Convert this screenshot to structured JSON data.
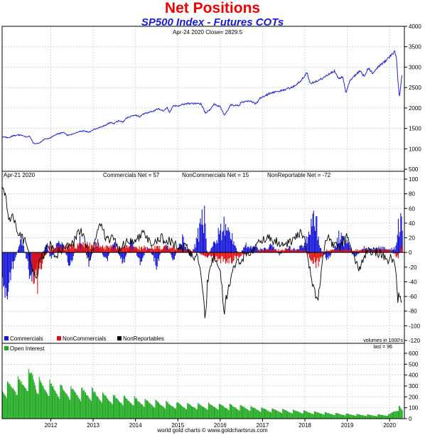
{
  "header": {
    "title": "Net Positions",
    "subtitle": "SP500 Index - Futures COTs"
  },
  "footer": {
    "credit": "world gold charts © www.goldchartsrus.com"
  },
  "colors": {
    "price": "#2222dd",
    "commercials": "#1616d8",
    "noncommercials": "#e01010",
    "nonreportables": "#000000",
    "open_interest": "#22aa22",
    "grid": "#c8d8e8"
  },
  "chart_data": [
    {
      "type": "line",
      "title": "SP500 Index",
      "info": "Apr-24  2020   Close= 2829.5",
      "series": [],
      "x_range": [
        2010.85,
        2020.35
      ],
      "ylim": [
        450,
        4000
      ],
      "y_ticks": [
        500,
        1000,
        1500,
        2000,
        2500,
        3000,
        3500,
        4000
      ],
      "points": [
        [
          2010.85,
          1300
        ],
        [
          2011.0,
          1270
        ],
        [
          2011.1,
          1320
        ],
        [
          2011.25,
          1340
        ],
        [
          2011.33,
          1330
        ],
        [
          2011.42,
          1290
        ],
        [
          2011.5,
          1310
        ],
        [
          2011.58,
          1150
        ],
        [
          2011.67,
          1120
        ],
        [
          2011.75,
          1160
        ],
        [
          2011.85,
          1240
        ],
        [
          2011.95,
          1250
        ],
        [
          2012.0,
          1280
        ],
        [
          2012.15,
          1360
        ],
        [
          2012.3,
          1400
        ],
        [
          2012.4,
          1330
        ],
        [
          2012.5,
          1360
        ],
        [
          2012.65,
          1420
        ],
        [
          2012.8,
          1440
        ],
        [
          2012.9,
          1400
        ],
        [
          2013.0,
          1470
        ],
        [
          2013.25,
          1560
        ],
        [
          2013.4,
          1640
        ],
        [
          2013.5,
          1620
        ],
        [
          2013.6,
          1690
        ],
        [
          2013.7,
          1660
        ],
        [
          2013.8,
          1760
        ],
        [
          2014.0,
          1830
        ],
        [
          2014.1,
          1780
        ],
        [
          2014.2,
          1860
        ],
        [
          2014.4,
          1920
        ],
        [
          2014.55,
          1980
        ],
        [
          2014.65,
          1930
        ],
        [
          2014.75,
          2010
        ],
        [
          2014.8,
          1880
        ],
        [
          2014.9,
          2060
        ],
        [
          2015.0,
          2050
        ],
        [
          2015.2,
          2110
        ],
        [
          2015.4,
          2110
        ],
        [
          2015.55,
          2100
        ],
        [
          2015.65,
          1870
        ],
        [
          2015.75,
          1950
        ],
        [
          2015.85,
          2090
        ],
        [
          2016.0,
          2030
        ],
        [
          2016.1,
          1830
        ],
        [
          2016.25,
          2070
        ],
        [
          2016.45,
          2060
        ],
        [
          2016.5,
          2150
        ],
        [
          2016.7,
          2170
        ],
        [
          2016.85,
          2100
        ],
        [
          2016.95,
          2250
        ],
        [
          2017.0,
          2270
        ],
        [
          2017.2,
          2370
        ],
        [
          2017.5,
          2440
        ],
        [
          2017.7,
          2510
        ],
        [
          2017.9,
          2660
        ],
        [
          2018.05,
          2870
        ],
        [
          2018.12,
          2600
        ],
        [
          2018.3,
          2660
        ],
        [
          2018.5,
          2780
        ],
        [
          2018.7,
          2910
        ],
        [
          2018.8,
          2720
        ],
        [
          2018.9,
          2760
        ],
        [
          2018.97,
          2350
        ],
        [
          2019.05,
          2650
        ],
        [
          2019.3,
          2920
        ],
        [
          2019.4,
          2770
        ],
        [
          2019.5,
          2980
        ],
        [
          2019.6,
          2850
        ],
        [
          2019.7,
          2980
        ],
        [
          2019.85,
          3100
        ],
        [
          2020.0,
          3250
        ],
        [
          2020.12,
          3380
        ],
        [
          2020.16,
          3240
        ],
        [
          2020.2,
          2650
        ],
        [
          2020.23,
          2240
        ],
        [
          2020.27,
          2600
        ],
        [
          2020.3,
          2830
        ]
      ]
    },
    {
      "type": "bar",
      "title": "",
      "date_label": "Apr-21  2020",
      "legend_entries": [
        "Commercials Net = 57",
        "NonCommercials Net = 15",
        "NonReportable Net = -72"
      ],
      "series": [
        {
          "name": "Commercials",
          "kind": "bar"
        },
        {
          "name": "NonCommercials",
          "kind": "bar"
        },
        {
          "name": "NonReportables",
          "kind": "line"
        }
      ],
      "ylim": [
        -120,
        100
      ],
      "y_ticks": [
        100,
        80,
        60,
        40,
        20,
        0,
        -20,
        -40,
        -60,
        -80,
        -100,
        -120
      ],
      "commercials_envelope": [
        [
          2010.85,
          -45
        ],
        [
          2010.95,
          -75
        ],
        [
          2011.1,
          -30
        ],
        [
          2011.3,
          30
        ],
        [
          2011.45,
          -20
        ],
        [
          2011.55,
          -60
        ],
        [
          2011.7,
          -25
        ],
        [
          2011.9,
          20
        ],
        [
          2012.0,
          -15
        ],
        [
          2012.2,
          30
        ],
        [
          2012.45,
          -25
        ],
        [
          2012.7,
          30
        ],
        [
          2012.9,
          -20
        ],
        [
          2013.1,
          25
        ],
        [
          2013.3,
          -20
        ],
        [
          2013.5,
          20
        ],
        [
          2013.7,
          -25
        ],
        [
          2013.9,
          25
        ],
        [
          2014.1,
          -20
        ],
        [
          2014.3,
          10
        ],
        [
          2014.5,
          -25
        ],
        [
          2014.7,
          20
        ],
        [
          2014.9,
          -15
        ],
        [
          2015.1,
          30
        ],
        [
          2015.3,
          -10
        ],
        [
          2015.5,
          40
        ],
        [
          2015.62,
          75
        ],
        [
          2015.7,
          -10
        ],
        [
          2015.9,
          30
        ],
        [
          2016.1,
          50
        ],
        [
          2016.2,
          80
        ],
        [
          2016.3,
          20
        ],
        [
          2016.45,
          -5
        ],
        [
          2016.6,
          15
        ],
        [
          2016.8,
          10
        ],
        [
          2017.0,
          5
        ],
        [
          2017.2,
          15
        ],
        [
          2017.4,
          -5
        ],
        [
          2017.6,
          10
        ],
        [
          2017.8,
          5
        ],
        [
          2018.0,
          15
        ],
        [
          2018.15,
          60
        ],
        [
          2018.25,
          70
        ],
        [
          2018.35,
          10
        ],
        [
          2018.55,
          -15
        ],
        [
          2018.7,
          10
        ],
        [
          2018.8,
          30
        ],
        [
          2019.0,
          20
        ],
        [
          2019.2,
          -10
        ],
        [
          2019.4,
          10
        ],
        [
          2019.6,
          5
        ],
        [
          2019.8,
          10
        ],
        [
          2020.0,
          5
        ],
        [
          2020.15,
          10
        ],
        [
          2020.2,
          55
        ],
        [
          2020.25,
          65
        ],
        [
          2020.3,
          57
        ]
      ],
      "noncommercials_envelope": [
        [
          2011.55,
          -20
        ],
        [
          2011.6,
          -55
        ],
        [
          2011.68,
          -60
        ],
        [
          2011.75,
          -30
        ],
        [
          2011.85,
          -10
        ],
        [
          2012.0,
          10
        ],
        [
          2012.3,
          10
        ],
        [
          2012.6,
          15
        ],
        [
          2013.0,
          15
        ],
        [
          2013.5,
          10
        ],
        [
          2014.0,
          10
        ],
        [
          2014.4,
          10
        ],
        [
          2014.8,
          10
        ],
        [
          2015.3,
          5
        ],
        [
          2015.6,
          -5
        ],
        [
          2016.2,
          -20
        ],
        [
          2016.5,
          -5
        ],
        [
          2017.0,
          5
        ],
        [
          2017.5,
          5
        ],
        [
          2018.0,
          5
        ],
        [
          2018.2,
          -20
        ],
        [
          2018.3,
          -25
        ],
        [
          2018.5,
          5
        ],
        [
          2019.0,
          5
        ],
        [
          2019.5,
          5
        ],
        [
          2020.0,
          5
        ],
        [
          2020.2,
          -10
        ],
        [
          2020.3,
          15
        ]
      ],
      "nonreportables": [
        [
          2010.85,
          90
        ],
        [
          2010.95,
          70
        ],
        [
          2011.0,
          40
        ],
        [
          2011.1,
          50
        ],
        [
          2011.2,
          30
        ],
        [
          2011.3,
          20
        ],
        [
          2011.45,
          10
        ],
        [
          2011.55,
          -20
        ],
        [
          2011.65,
          -40
        ],
        [
          2011.75,
          -10
        ],
        [
          2011.9,
          5
        ],
        [
          2012.0,
          10
        ],
        [
          2012.1,
          -5
        ],
        [
          2012.3,
          5
        ],
        [
          2012.5,
          10
        ],
        [
          2012.7,
          30
        ],
        [
          2012.8,
          20
        ],
        [
          2012.9,
          -10
        ],
        [
          2013.0,
          5
        ],
        [
          2013.1,
          30
        ],
        [
          2013.2,
          40
        ],
        [
          2013.3,
          15
        ],
        [
          2013.5,
          20
        ],
        [
          2013.6,
          5
        ],
        [
          2013.8,
          15
        ],
        [
          2014.0,
          20
        ],
        [
          2014.2,
          25
        ],
        [
          2014.4,
          10
        ],
        [
          2014.6,
          20
        ],
        [
          2014.8,
          15
        ],
        [
          2015.0,
          10
        ],
        [
          2015.2,
          5
        ],
        [
          2015.4,
          -5
        ],
        [
          2015.5,
          -10
        ],
        [
          2015.6,
          -60
        ],
        [
          2015.65,
          -95
        ],
        [
          2015.7,
          -40
        ],
        [
          2015.8,
          -10
        ],
        [
          2015.9,
          -5
        ],
        [
          2016.0,
          -30
        ],
        [
          2016.1,
          -80
        ],
        [
          2016.15,
          -60
        ],
        [
          2016.3,
          -20
        ],
        [
          2016.5,
          -10
        ],
        [
          2016.7,
          0
        ],
        [
          2016.9,
          10
        ],
        [
          2017.1,
          20
        ],
        [
          2017.3,
          15
        ],
        [
          2017.5,
          10
        ],
        [
          2017.7,
          15
        ],
        [
          2017.9,
          25
        ],
        [
          2018.0,
          15
        ],
        [
          2018.1,
          -20
        ],
        [
          2018.2,
          -50
        ],
        [
          2018.3,
          -70
        ],
        [
          2018.4,
          -20
        ],
        [
          2018.5,
          20
        ],
        [
          2018.6,
          15
        ],
        [
          2018.7,
          10
        ],
        [
          2018.8,
          5
        ],
        [
          2018.9,
          15
        ],
        [
          2019.0,
          20
        ],
        [
          2019.1,
          0
        ],
        [
          2019.2,
          -15
        ],
        [
          2019.3,
          -20
        ],
        [
          2019.4,
          -5
        ],
        [
          2019.5,
          5
        ],
        [
          2019.7,
          0
        ],
        [
          2019.9,
          -5
        ],
        [
          2020.0,
          -10
        ],
        [
          2020.1,
          -5
        ],
        [
          2020.15,
          -30
        ],
        [
          2020.2,
          -75
        ],
        [
          2020.22,
          -45
        ],
        [
          2020.26,
          -70
        ],
        [
          2020.3,
          -72
        ]
      ],
      "legend": [
        "Commercials",
        "NonCommercials",
        "NonReportables"
      ],
      "volume_note": "volumes in 1000's"
    },
    {
      "type": "bar",
      "title": "Open Interest",
      "note": "last = 96",
      "ylim": [
        0,
        600
      ],
      "y_ticks": [
        600,
        500,
        400,
        300,
        200,
        100,
        0
      ],
      "x_ticks": [
        "2012",
        "2013",
        "2014",
        "2015",
        "2016",
        "2017",
        "2018",
        "2019",
        "2020"
      ],
      "x_tick_values": [
        2012,
        2013,
        2014,
        2015,
        2016,
        2017,
        2018,
        2019,
        2020
      ],
      "envelope": [
        [
          2010.85,
          340
        ],
        [
          2011.0,
          360
        ],
        [
          2011.2,
          390
        ],
        [
          2011.35,
          420
        ],
        [
          2011.5,
          470
        ],
        [
          2011.58,
          510
        ],
        [
          2011.65,
          400
        ],
        [
          2011.8,
          380
        ],
        [
          2012.0,
          360
        ],
        [
          2012.25,
          330
        ],
        [
          2012.5,
          310
        ],
        [
          2012.75,
          300
        ],
        [
          2013.0,
          290
        ],
        [
          2013.3,
          250
        ],
        [
          2013.6,
          230
        ],
        [
          2014.0,
          210
        ],
        [
          2014.3,
          190
        ],
        [
          2014.6,
          170
        ],
        [
          2015.0,
          160
        ],
        [
          2015.3,
          150
        ],
        [
          2015.6,
          150
        ],
        [
          2016.0,
          150
        ],
        [
          2016.3,
          140
        ],
        [
          2016.6,
          130
        ],
        [
          2017.0,
          110
        ],
        [
          2017.3,
          100
        ],
        [
          2017.6,
          90
        ],
        [
          2018.0,
          80
        ],
        [
          2018.3,
          70
        ],
        [
          2018.6,
          60
        ],
        [
          2019.0,
          50
        ],
        [
          2019.3,
          45
        ],
        [
          2019.6,
          40
        ],
        [
          2020.0,
          45
        ],
        [
          2020.15,
          110
        ],
        [
          2020.22,
          130
        ],
        [
          2020.3,
          96
        ]
      ]
    }
  ]
}
